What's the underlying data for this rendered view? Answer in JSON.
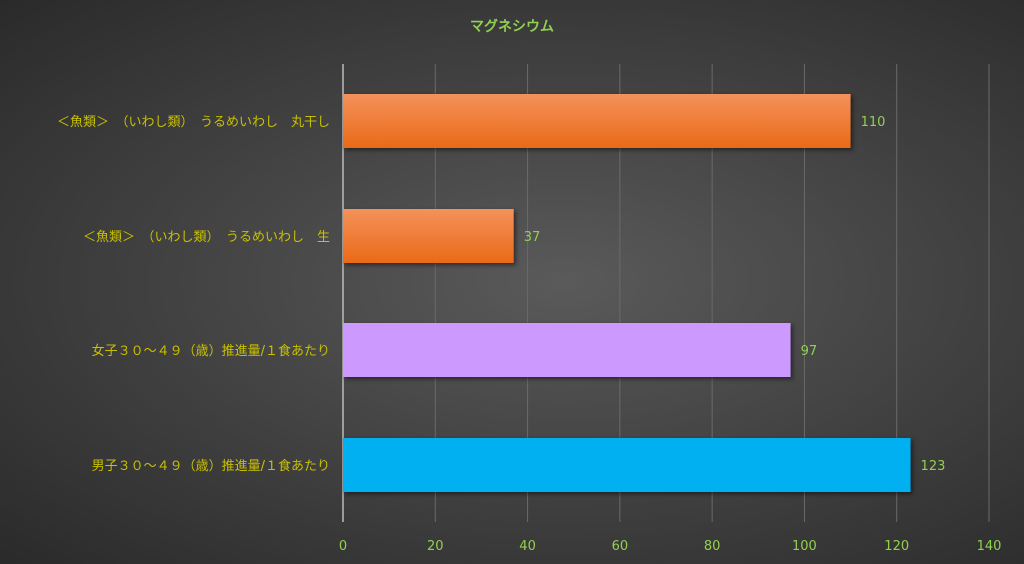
{
  "chart_data": {
    "type": "bar",
    "orientation": "horizontal",
    "title": "マグネシウム",
    "categories": [
      "＜魚類＞　（いわし類）　うるめいわし　丸干し",
      "＜魚類＞　（いわし類）　うるめいわし　生",
      "女子３０～４９（歳）推進量/１食あたり",
      "男子３０～４９（歳）推進量/１食あたり"
    ],
    "values": [
      110,
      37,
      97,
      123
    ],
    "colors": [
      "#f07b2a",
      "#f07b2a",
      "#cc99ff",
      "#00b0f0"
    ],
    "xlim": [
      0,
      140
    ],
    "xticks": [
      0,
      20,
      40,
      60,
      80,
      100,
      120,
      140
    ],
    "grid": true,
    "data_labels": true,
    "legend": "none"
  }
}
